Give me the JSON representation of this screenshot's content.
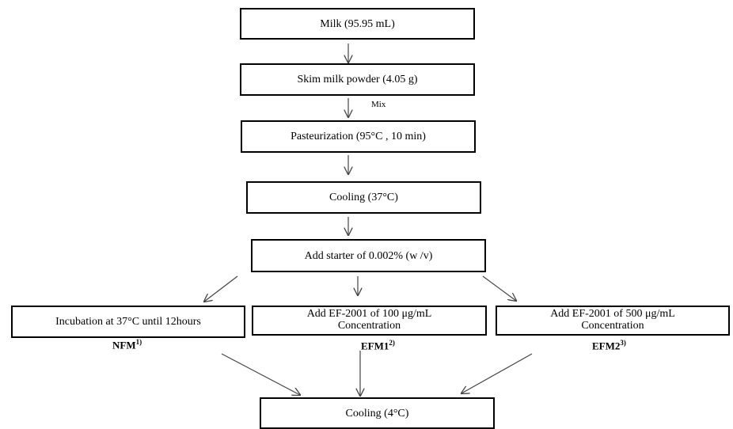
{
  "steps": {
    "milk": "Milk  (95.95 mL)",
    "skim": "Skim milk powder (4.05 g)",
    "mix": "Mix",
    "pasteurization": "Pasteurization  (95°C , 10 min)",
    "cooling1": "Cooling (37°C)",
    "starter": "Add starter of  0.002% (w /v)",
    "incubation": "Incubation at 37°C until 12hours",
    "ef100": "Add EF-2001 of 100 μg/mL\nConcentration",
    "ef500": "Add EF-2001 of 500 μg/mL\nConcentration",
    "cooling2": "Cooling (4°C)"
  },
  "labels": {
    "nfm": "NFM",
    "nfm_sup": "1)",
    "efm1": "EFM1",
    "efm1_sup": "2)",
    "efm2": "EFM2",
    "efm2_sup": "3)"
  }
}
